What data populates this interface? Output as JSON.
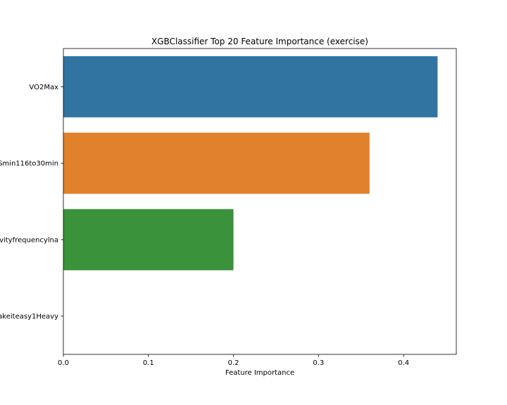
{
  "chart_data": {
    "type": "bar",
    "orientation": "horizontal",
    "title": "XGBClassifier Top 20 Feature Importance (exercise)",
    "xlabel": "Feature Importance",
    "ylabel": "",
    "categories": [
      "VO2Max",
      "Smin116to30min",
      "vityfrequencylna",
      "akeiteasy1Heavy"
    ],
    "values": [
      0.44,
      0.36,
      0.2,
      0.0
    ],
    "colors": [
      "#3274a1",
      "#e1812c",
      "#3a923a",
      "#c03d3e"
    ],
    "xlim": [
      0,
      0.462
    ],
    "xticks": [
      0.0,
      0.1,
      0.2,
      0.3,
      0.4
    ],
    "xtick_labels": [
      "0.0",
      "0.1",
      "0.2",
      "0.3",
      "0.4"
    ],
    "grid": false,
    "legend": "none"
  }
}
